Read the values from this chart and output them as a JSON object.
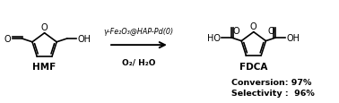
{
  "bg_color": "#ffffff",
  "figsize": [
    3.78,
    1.16
  ],
  "dpi": 100,
  "hmf_label": "HMF",
  "fdca_label": "FDCA",
  "catalyst_label": "γ-Fe₂O₃@HAP-Pd(0)",
  "conditions_label": "O₂/ H₂O",
  "conversion_label": "Conversion: 97%",
  "selectivity_label": "Selectivity :  96%",
  "line_color": "#000000",
  "lw": 1.2
}
